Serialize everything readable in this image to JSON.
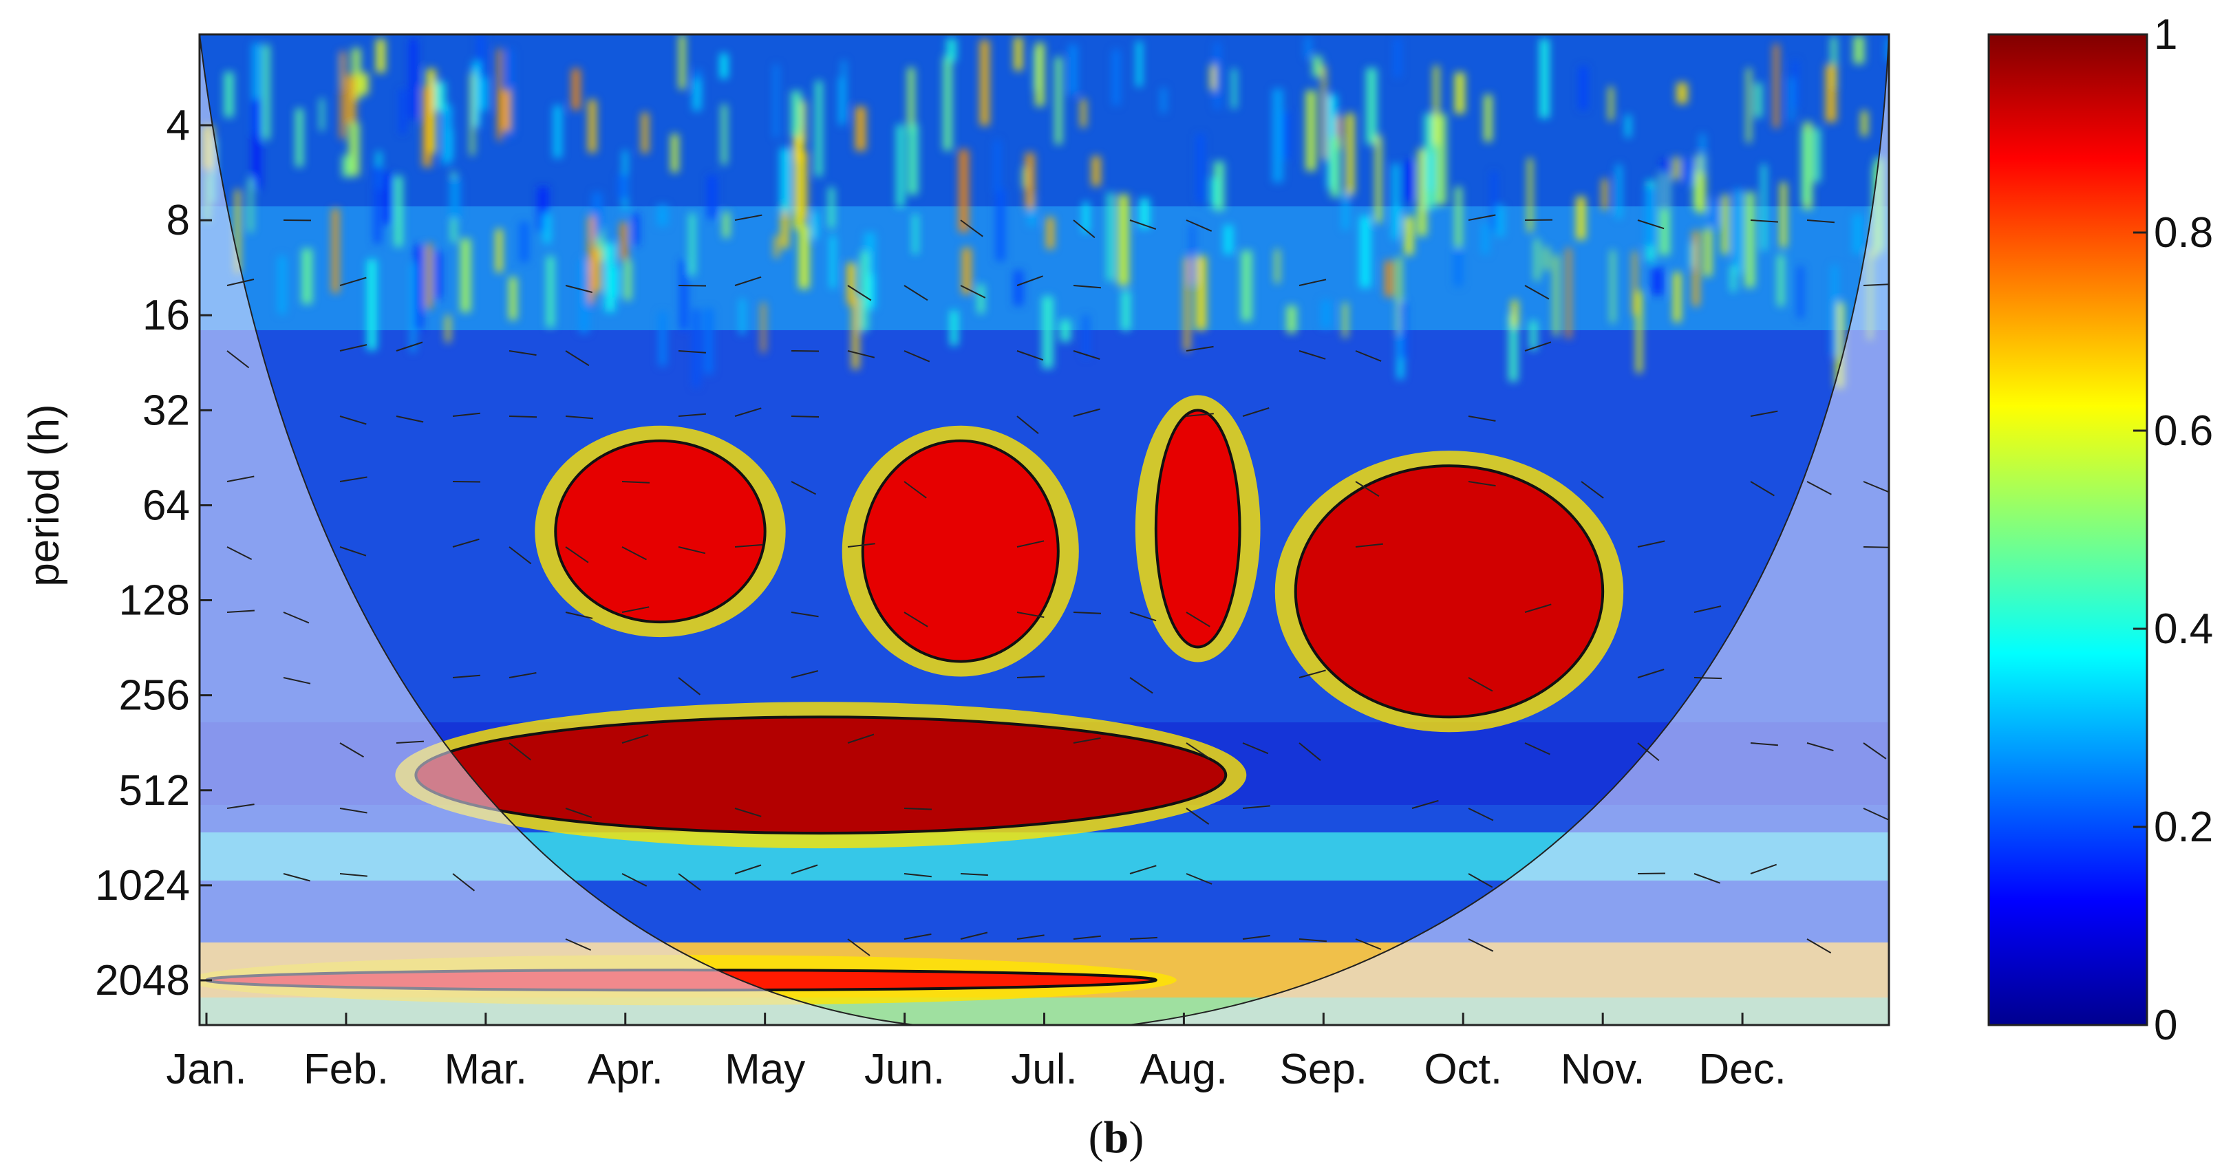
{
  "chart_data": {
    "type": "heatmap",
    "title": "",
    "ylabel": "period (h)",
    "xlabel": "",
    "caption_open": "(",
    "caption_letter": "b",
    "caption_close": ")",
    "x_ticks": [
      "Jan.",
      "Feb.",
      "Mar.",
      "Apr.",
      "May",
      "Jun.",
      "Jul.",
      "Aug.",
      "Sep.",
      "Oct.",
      "Nov.",
      "Dec."
    ],
    "y_ticks": [
      "4",
      "8",
      "16",
      "32",
      "64",
      "128",
      "256",
      "512",
      "1024",
      "2048"
    ],
    "y_scale": "log2",
    "colorbar": {
      "range": [
        0,
        1
      ],
      "ticks": [
        "0",
        "0.2",
        "0.4",
        "0.6",
        "0.8",
        "1"
      ],
      "colormap": "jet",
      "colors": [
        "#00008f",
        "#0000ff",
        "#00ffff",
        "#ffff00",
        "#ff0000",
        "#800000"
      ]
    },
    "significant_regions": [
      {
        "months": [
          2.5,
          4.0
        ],
        "period_h": [
          40,
          150
        ],
        "coherence": 0.9
      },
      {
        "months": [
          4.7,
          6.1
        ],
        "period_h": [
          40,
          200
        ],
        "coherence": 0.9
      },
      {
        "months": [
          6.8,
          7.4
        ],
        "period_h": [
          32,
          180
        ],
        "coherence": 0.9
      },
      {
        "months": [
          7.8,
          10.0
        ],
        "period_h": [
          48,
          300
        ],
        "coherence": 0.92
      },
      {
        "months": [
          1.5,
          7.3
        ],
        "period_h": [
          300,
          700
        ],
        "coherence": 0.95
      },
      {
        "months": [
          0,
          6.8
        ],
        "period_h": [
          1900,
          2200
        ],
        "coherence": 0.85
      }
    ],
    "band_labels": []
  }
}
